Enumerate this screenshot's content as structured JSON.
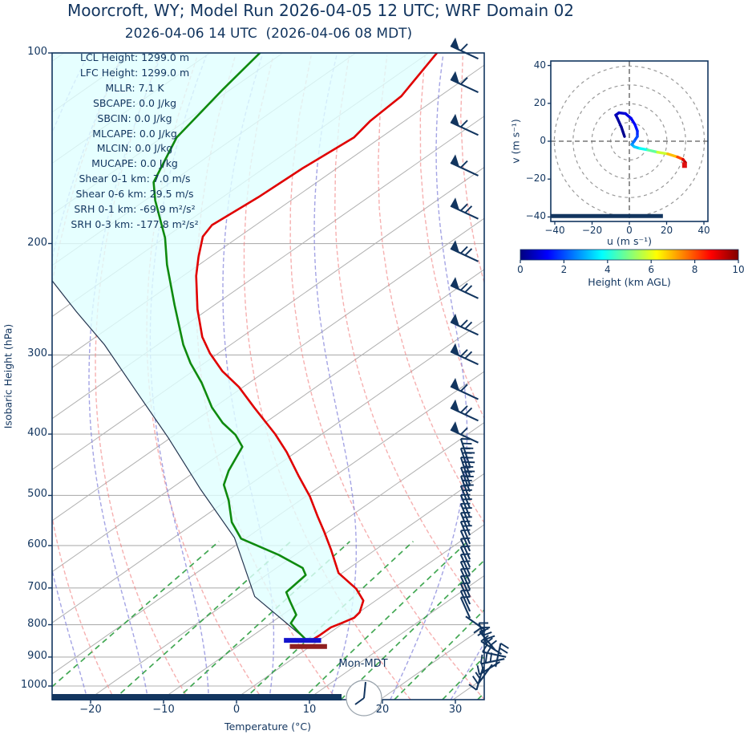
{
  "title": "Moorcroft, WY; Model Run 2026-04-05 12 UTC; WRF Domain 02",
  "subtitle": "2026-04-06 14 UTC  (2026-04-06 08 MDT)",
  "stats": [
    {
      "label": "LCL Height",
      "value": "1299.0 m"
    },
    {
      "label": "LFC Height",
      "value": "1299.0 m"
    },
    {
      "label": "MLLR",
      "value": "7.1 K"
    },
    {
      "label": "SBCAPE",
      "value": "0.0 J/kg"
    },
    {
      "label": "SBCIN",
      "value": "0.0 J/kg"
    },
    {
      "label": "MLCAPE",
      "value": "0.0 J/kg"
    },
    {
      "label": "MLCIN",
      "value": "0.0 J/kg"
    },
    {
      "label": "MUCAPE",
      "value": "0.0 J/kg"
    },
    {
      "label": "Shear 0-1 km",
      "value": "7.0 m/s"
    },
    {
      "label": "Shear 0-6 km",
      "value": "29.5 m/s"
    },
    {
      "label": "SRH 0-1 km",
      "value": "-69.9 m²/s²"
    },
    {
      "label": "SRH 0-3 km",
      "value": "-177.8 m²/s²"
    }
  ],
  "skewt": {
    "xlabel": "Temperature (°C)",
    "ylabel": "Isobaric Height (hPa)",
    "x_ticks": [
      -20,
      -10,
      0,
      10,
      20,
      30
    ],
    "y_ticks": [
      100,
      200,
      300,
      400,
      500,
      600,
      700,
      800,
      900,
      1000
    ],
    "annotation": "Mon-MDT",
    "clock_time": "8:00"
  },
  "hodograph": {
    "xlabel": "u (m s⁻¹)",
    "ylabel": "v (m s⁻¹)",
    "x_ticks": [
      -40,
      -20,
      0,
      20,
      40
    ],
    "y_ticks": [
      40,
      20,
      0,
      -20,
      -40
    ],
    "ring_radii": [
      10,
      20,
      30,
      40
    ]
  },
  "colorbar": {
    "label": "Height (km AGL)",
    "ticks": [
      0,
      2,
      4,
      6,
      8,
      10
    ],
    "min": 0,
    "max": 10
  },
  "chart_data": {
    "type": "skewt",
    "pressure_unit": "hPa",
    "temp_unit": "degC",
    "temperature": [
      [
        99,
        -99.1
      ],
      [
        117,
        -95.3
      ],
      [
        128,
        -94.7
      ],
      [
        136,
        -93.7
      ],
      [
        152,
        -94.7
      ],
      [
        169,
        -95.1
      ],
      [
        187,
        -96.0
      ],
      [
        195,
        -95.0
      ],
      [
        210,
        -91.6
      ],
      [
        225,
        -88.2
      ],
      [
        254,
        -81.5
      ],
      [
        281,
        -75.4
      ],
      [
        298,
        -71.2
      ],
      [
        318,
        -66.0
      ],
      [
        337,
        -60.6
      ],
      [
        363,
        -54.5
      ],
      [
        400,
        -46.4
      ],
      [
        427,
        -41.3
      ],
      [
        465,
        -35.1
      ],
      [
        502,
        -29.4
      ],
      [
        540,
        -24.4
      ],
      [
        571,
        -20.5
      ],
      [
        610,
        -16.0
      ],
      [
        663,
        -10.5
      ],
      [
        702,
        -5.0
      ],
      [
        733,
        -1.7
      ],
      [
        765,
        0.1
      ],
      [
        780,
        0.4
      ],
      [
        796,
        -0.3
      ],
      [
        808,
        -0.9
      ],
      [
        819,
        -0.9
      ],
      [
        831,
        -0.9
      ],
      [
        843,
        -1.0
      ]
    ],
    "dewpoint": [
      [
        99,
        -123.3
      ],
      [
        114,
        -121.1
      ],
      [
        136,
        -118.0
      ],
      [
        160,
        -112.4
      ],
      [
        171,
        -108.6
      ],
      [
        196,
        -99.9
      ],
      [
        216,
        -94.4
      ],
      [
        250,
        -85.5
      ],
      [
        289,
        -76.5
      ],
      [
        309,
        -71.9
      ],
      [
        332,
        -66.5
      ],
      [
        363,
        -60.3
      ],
      [
        384,
        -55.8
      ],
      [
        401,
        -51.7
      ],
      [
        419,
        -48.4
      ],
      [
        457,
        -45.6
      ],
      [
        481,
        -43.5
      ],
      [
        509,
        -39.8
      ],
      [
        551,
        -35.1
      ],
      [
        585,
        -30.6
      ],
      [
        621,
        -22.2
      ],
      [
        651,
        -16.4
      ],
      [
        668,
        -14.6
      ],
      [
        711,
        -13.9
      ],
      [
        735,
        -11.6
      ],
      [
        772,
        -8.1
      ],
      [
        796,
        -7.2
      ],
      [
        824,
        -4.2
      ],
      [
        843,
        -2.1
      ]
    ],
    "parcel": [
      [
        229,
        -107.0
      ],
      [
        256,
        -97.7
      ],
      [
        289,
        -87.3
      ],
      [
        342,
        -73.9
      ],
      [
        405,
        -60.4
      ],
      [
        489,
        -45.8
      ],
      [
        583,
        -31.7
      ],
      [
        722,
        -17.4
      ],
      [
        843,
        -2.1
      ]
    ],
    "surface_temp_bar": {
      "p": 847,
      "t_min": -4.8,
      "t_max": 0.3
    },
    "surface_dewpoint_bar": {
      "p": 866,
      "t_min": -2.8,
      "t_max": 2.3
    },
    "ground_bar": {
      "t_min": -25.3,
      "t_max": 14.4
    },
    "hodograph_uv": [
      [
        -2.6,
        2.5,
        0.1
      ],
      [
        -4.3,
        7.5,
        0.2
      ],
      [
        -6.4,
        12.1,
        0.35
      ],
      [
        -7.3,
        13.8,
        0.5
      ],
      [
        -5.6,
        15.0,
        0.65
      ],
      [
        -2.1,
        14.6,
        0.85
      ],
      [
        0.9,
        12.1,
        1.05
      ],
      [
        3.0,
        8.8,
        1.25
      ],
      [
        4.3,
        5.4,
        1.5
      ],
      [
        4.3,
        2.5,
        1.8
      ],
      [
        2.6,
        0.0,
        2.2
      ],
      [
        1.3,
        -1.7,
        2.6
      ],
      [
        2.6,
        -2.9,
        3.0
      ],
      [
        5.6,
        -3.8,
        3.5
      ],
      [
        9.9,
        -4.6,
        4.2
      ],
      [
        15.1,
        -5.8,
        5.2
      ],
      [
        20.6,
        -6.7,
        6.3
      ],
      [
        25.8,
        -8.3,
        7.5
      ],
      [
        28.8,
        -9.6,
        8.6
      ],
      [
        30.1,
        -11.3,
        9.6
      ],
      [
        29.6,
        -12.4,
        10.0
      ]
    ],
    "hodograph_ground_bar": {
      "u_min": -42,
      "u_max": 18,
      "v": -39.5
    },
    "wind_barbs": [
      {
        "p": 100,
        "k": "P1"
      },
      {
        "p": 113,
        "k": "P1"
      },
      {
        "p": 132,
        "k": "P1"
      },
      {
        "p": 153,
        "k": "P1"
      },
      {
        "p": 179,
        "k": "P2"
      },
      {
        "p": 209,
        "k": "P2"
      },
      {
        "p": 239,
        "k": "P2"
      },
      {
        "p": 273,
        "k": "P2"
      },
      {
        "p": 304,
        "k": "P2"
      },
      {
        "p": 345,
        "k": "P1"
      },
      {
        "p": 373,
        "k": "P2"
      },
      {
        "p": 404,
        "k": "P1"
      },
      {
        "p": 430,
        "k": "B4"
      },
      {
        "p": 445,
        "k": "B4"
      },
      {
        "p": 460,
        "k": "B4"
      },
      {
        "p": 474,
        "k": "B3"
      },
      {
        "p": 489,
        "k": "B3"
      },
      {
        "p": 505,
        "k": "B2"
      },
      {
        "p": 522,
        "k": "B2"
      },
      {
        "p": 539,
        "k": "B2"
      },
      {
        "p": 557,
        "k": "B2"
      },
      {
        "p": 575,
        "k": "B2"
      },
      {
        "p": 592,
        "k": "B1"
      },
      {
        "p": 610,
        "k": "B1"
      },
      {
        "p": 628,
        "k": "B1"
      },
      {
        "p": 646,
        "k": "B1"
      },
      {
        "p": 663,
        "k": "B1"
      },
      {
        "p": 681,
        "k": "B1"
      },
      {
        "p": 699,
        "k": "B1"
      },
      {
        "p": 718,
        "k": "B1"
      },
      {
        "p": 737,
        "k": "B1"
      },
      {
        "p": 755,
        "k": "B1"
      }
    ]
  },
  "colors": {
    "navy": "#12355f",
    "temperature": "#e00000",
    "dewpoint": "#0f8a0f",
    "parcel": "#24344f",
    "shade": "#e0ffff",
    "isotherm": "#b0b0b0",
    "dry_adiabat": "#f08080",
    "moist_adiabat": "#8585db",
    "mixing_ratio": "#2f9e41",
    "bar_blue": "#1414cc",
    "bar_red": "#8f1f1f"
  }
}
